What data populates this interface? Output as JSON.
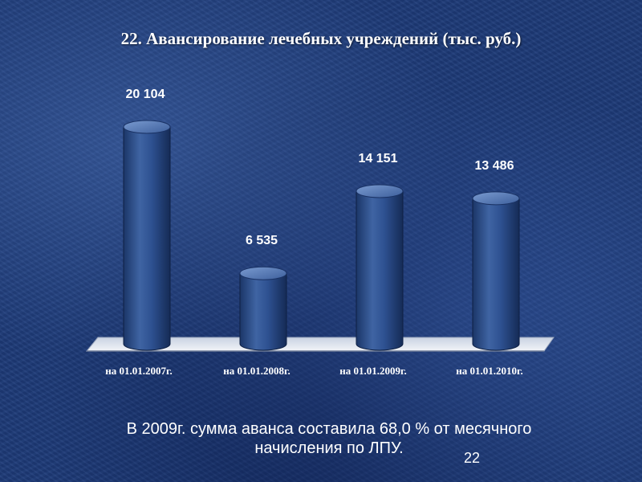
{
  "slide": {
    "title": "22. Авансирование лечебных учреждений  (тыс. руб.)",
    "footnote_line1": "В 2009г. сумма аванса составила 68,0 % от месячного",
    "footnote_line2": "начисления по ЛПУ.",
    "page_number": "22"
  },
  "colors": {
    "background": "#1d3a78",
    "bar": "#2c4f8a",
    "bar_top": "#5d7fb8",
    "floor": "#e8ecf4",
    "text": "#ffffff"
  },
  "chart_data": {
    "type": "bar",
    "style": "3d-cylinder",
    "categories": [
      "на 01.01.2007г.",
      "на 01.01.2008г.",
      "на 01.01.2009г.",
      "на 01.01.2010г."
    ],
    "values": [
      20104,
      6535,
      14151,
      13486
    ],
    "data_labels": [
      "20 104",
      "6 535",
      "14 151",
      "13 486"
    ],
    "title": "22. Авансирование лечебных учреждений  (тыс. руб.)",
    "xlabel": "",
    "ylabel": "",
    "ylim": [
      0,
      20104
    ],
    "grid": false,
    "legend": "none"
  }
}
